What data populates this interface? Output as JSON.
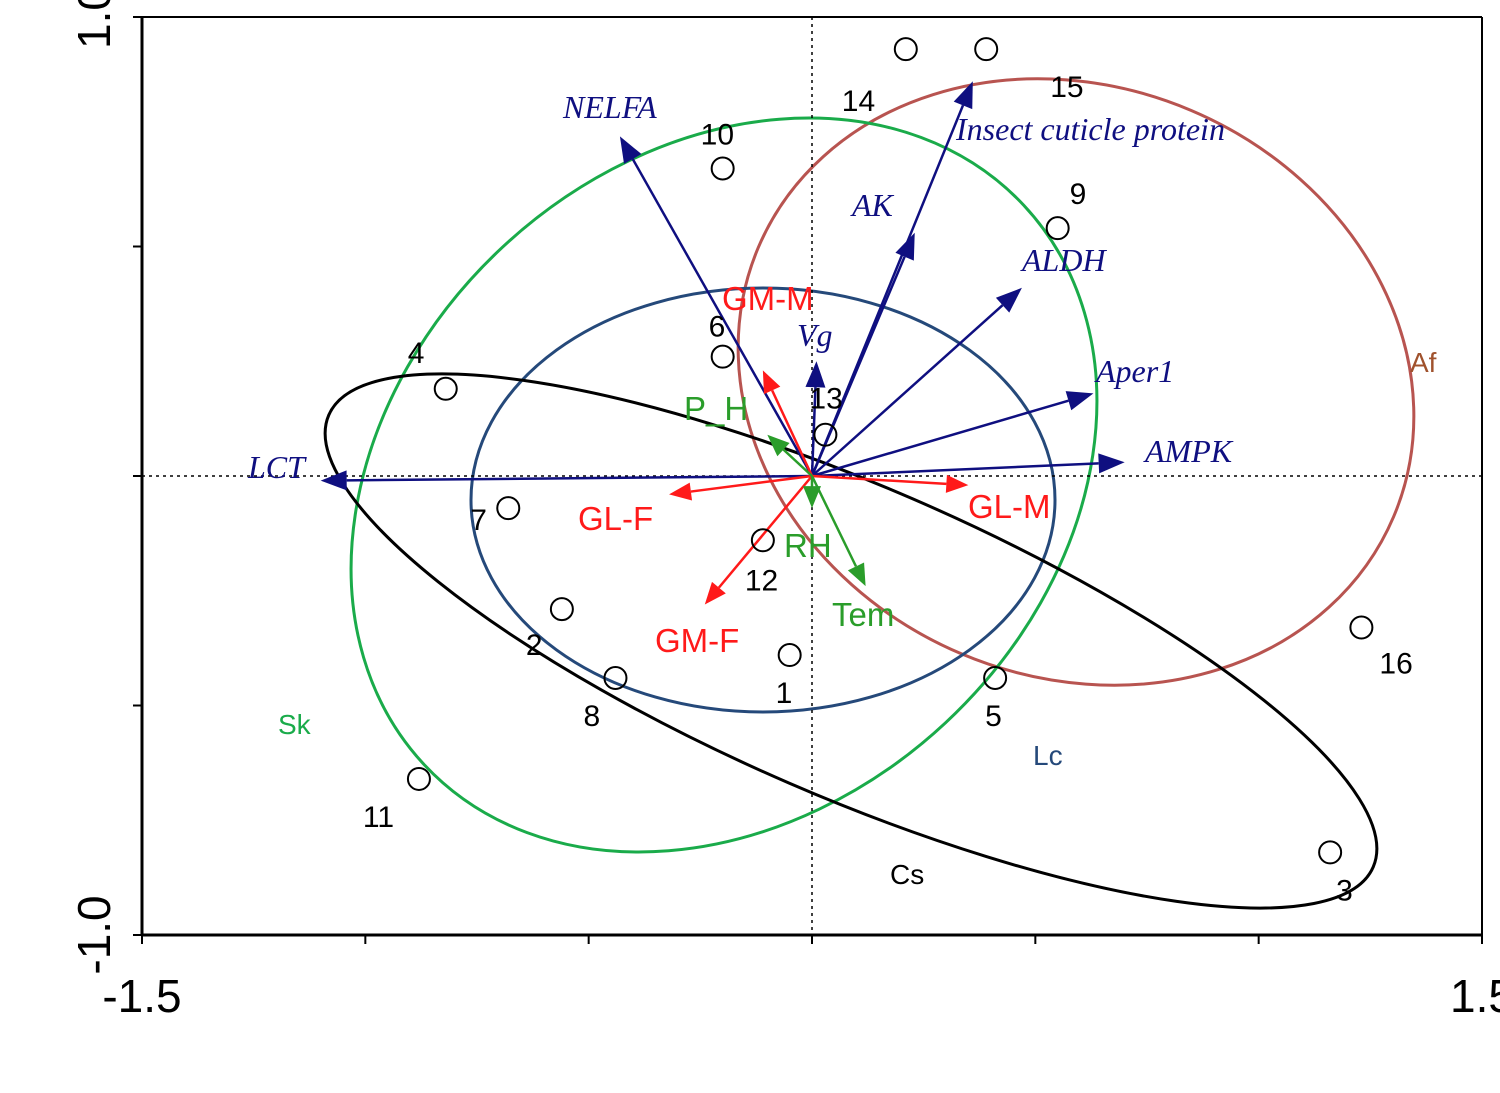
{
  "chart_data": {
    "type": "scatter",
    "subtype": "ordination-biplot",
    "title": "",
    "xlabel": "",
    "ylabel": "",
    "xlim": [
      -1.5,
      1.5
    ],
    "ylim": [
      -1.0,
      1.0
    ],
    "x_tick_labels": [
      "-1.5",
      "1.5"
    ],
    "y_tick_labels": [
      "1.0",
      "-1.0"
    ],
    "x_minor_ticks": [
      -1.5,
      -1.0,
      -0.5,
      0.0,
      0.5,
      1.0,
      1.5
    ],
    "y_minor_ticks": [
      -1.0,
      -0.5,
      0.0,
      0.5,
      1.0
    ],
    "zero_lines": true,
    "grid": false,
    "points": [
      {
        "label": "1",
        "x": -0.05,
        "y": -0.39
      },
      {
        "label": "2",
        "x": -0.56,
        "y": -0.29
      },
      {
        "label": "3",
        "x": 1.16,
        "y": -0.82
      },
      {
        "label": "4",
        "x": -0.82,
        "y": 0.19
      },
      {
        "label": "5",
        "x": 0.41,
        "y": -0.44
      },
      {
        "label": "6",
        "x": -0.2,
        "y": 0.26
      },
      {
        "label": "7",
        "x": -0.68,
        "y": -0.07
      },
      {
        "label": "8",
        "x": -0.44,
        "y": -0.44
      },
      {
        "label": "9",
        "x": 0.55,
        "y": 0.54
      },
      {
        "label": "10",
        "x": -0.2,
        "y": 0.67
      },
      {
        "label": "11",
        "x": -0.88,
        "y": -0.66
      },
      {
        "label": "12",
        "x": -0.11,
        "y": -0.14
      },
      {
        "label": "13",
        "x": 0.03,
        "y": 0.09
      },
      {
        "label": "14",
        "x": 0.21,
        "y": 0.93
      },
      {
        "label": "15",
        "x": 0.39,
        "y": 0.93
      },
      {
        "label": "16",
        "x": 1.23,
        "y": -0.33
      }
    ],
    "vectors": [
      {
        "name": "NELFA",
        "group": "gene",
        "x": -0.43,
        "y": 0.74
      },
      {
        "name": "Insect cuticle protein",
        "group": "gene",
        "x": 0.36,
        "y": 0.86
      },
      {
        "name": "AK",
        "group": "gene",
        "x": 0.23,
        "y": 0.53
      },
      {
        "name": "ALDH",
        "group": "gene",
        "x": 0.47,
        "y": 0.41
      },
      {
        "name": "Vg",
        "group": "gene",
        "x": 0.01,
        "y": 0.25
      },
      {
        "name": "Aper1",
        "group": "gene",
        "x": 0.63,
        "y": 0.18
      },
      {
        "name": "AMPK",
        "group": "gene",
        "x": 0.7,
        "y": 0.03
      },
      {
        "name": "LCT",
        "group": "gene",
        "x": -1.1,
        "y": -0.01
      },
      {
        "name": "GM-M",
        "group": "morph",
        "x": -0.11,
        "y": 0.23
      },
      {
        "name": "GL-F",
        "group": "morph",
        "x": -0.32,
        "y": -0.04
      },
      {
        "name": "GL-M",
        "group": "morph",
        "x": 0.35,
        "y": -0.02
      },
      {
        "name": "GM-F",
        "group": "morph",
        "x": -0.24,
        "y": -0.28
      },
      {
        "name": "P_H",
        "group": "env",
        "x": -0.1,
        "y": 0.09
      },
      {
        "name": "RH",
        "group": "env",
        "x": 0.0,
        "y": -0.07
      },
      {
        "name": "Tem",
        "group": "env",
        "x": 0.12,
        "y": -0.24
      }
    ],
    "groups": [
      {
        "name": "Af",
        "color": "#b85450"
      },
      {
        "name": "Sk",
        "color": "#1aab4a"
      },
      {
        "name": "Lc",
        "color": "#25497a"
      },
      {
        "name": "Cs",
        "color": "#000000"
      }
    ],
    "colors": {
      "gene": "#0f0f80",
      "morph": "#ff1a1a",
      "env": "#2a9d2a",
      "axis": "#000000"
    }
  }
}
